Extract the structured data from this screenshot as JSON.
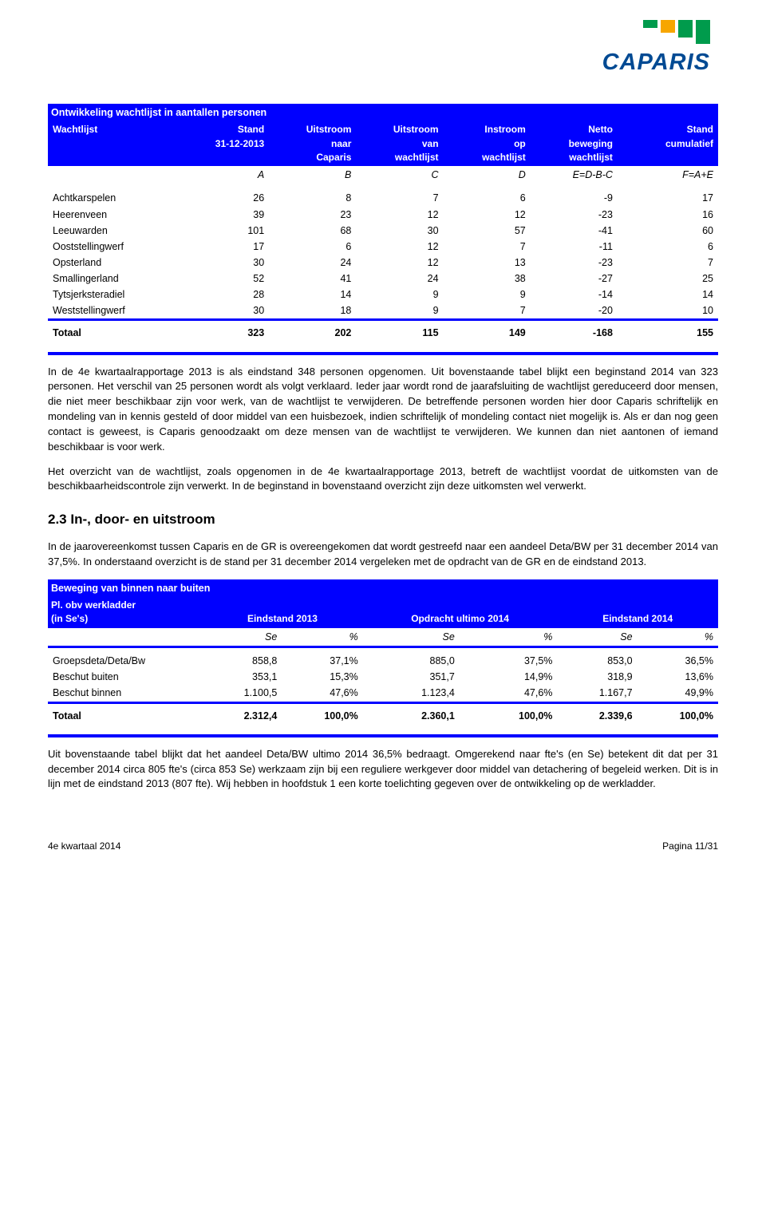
{
  "logo": {
    "text": "CAPARIS"
  },
  "table1": {
    "title": "Ontwikkeling wachtlijst in aantallen personen",
    "headers": {
      "c0_l1": "Wachtlijst",
      "c0_l2": "",
      "c0_l3": "",
      "c1_l1": "Stand",
      "c1_l2": "31-12-2013",
      "c1_l3": "",
      "c2_l1": "Uitstroom",
      "c2_l2": "naar",
      "c2_l3": "Caparis",
      "c3_l1": "Uitstroom",
      "c3_l2": "van",
      "c3_l3": "wachtlijst",
      "c4_l1": "Instroom",
      "c4_l2": "op",
      "c4_l3": "wachtlijst",
      "c5_l1": "Netto",
      "c5_l2": "beweging",
      "c5_l3": "wachtlijst",
      "c6_l1": "Stand",
      "c6_l2": "cumulatief",
      "c6_l3": ""
    },
    "letters": {
      "a": "A",
      "b": "B",
      "c": "C",
      "d": "D",
      "e": "E=D-B-C",
      "f": "F=A+E"
    },
    "rows": [
      {
        "name": "Achtkarspelen",
        "a": "26",
        "b": "8",
        "c": "7",
        "d": "6",
        "e": "-9",
        "f": "17"
      },
      {
        "name": "Heerenveen",
        "a": "39",
        "b": "23",
        "c": "12",
        "d": "12",
        "e": "-23",
        "f": "16"
      },
      {
        "name": "Leeuwarden",
        "a": "101",
        "b": "68",
        "c": "30",
        "d": "57",
        "e": "-41",
        "f": "60"
      },
      {
        "name": "Ooststellingwerf",
        "a": "17",
        "b": "6",
        "c": "12",
        "d": "7",
        "e": "-11",
        "f": "6"
      },
      {
        "name": "Opsterland",
        "a": "30",
        "b": "24",
        "c": "12",
        "d": "13",
        "e": "-23",
        "f": "7"
      },
      {
        "name": "Smallingerland",
        "a": "52",
        "b": "41",
        "c": "24",
        "d": "38",
        "e": "-27",
        "f": "25"
      },
      {
        "name": "Tytsjerksteradiel",
        "a": "28",
        "b": "14",
        "c": "9",
        "d": "9",
        "e": "-14",
        "f": "14"
      },
      {
        "name": "Weststellingwerf",
        "a": "30",
        "b": "18",
        "c": "9",
        "d": "7",
        "e": "-20",
        "f": "10"
      }
    ],
    "total": {
      "label": "Totaal",
      "a": "323",
      "b": "202",
      "c": "115",
      "d": "149",
      "e": "-168",
      "f": "155"
    }
  },
  "para1": "In de 4e kwartaalrapportage 2013 is als eindstand 348 personen opgenomen. Uit bovenstaande tabel blijkt een beginstand 2014 van 323 personen. Het verschil van 25 personen wordt als volgt verklaard. Ieder jaar wordt rond de jaarafsluiting de wachtlijst gereduceerd door mensen, die niet meer beschikbaar zijn voor werk, van de wachtlijst te verwijderen. De betreffende personen worden hier door Caparis schriftelijk en mondeling van in kennis gesteld of door middel van een huisbezoek, indien schriftelijk of mondeling contact niet mogelijk is. Als er dan nog geen contact is geweest, is Caparis genoodzaakt om deze mensen van de wachtlijst te verwijderen. We kunnen dan niet aantonen of iemand beschikbaar is voor werk.",
  "para2": "Het overzicht van de wachtlijst, zoals opgenomen in de 4e kwartaalrapportage 2013, betreft de wachtlijst voordat de uitkomsten van de beschikbaarheidscontrole zijn verwerkt. In de beginstand in bovenstaand overzicht zijn deze uitkomsten wel verwerkt.",
  "section23": "2.3 In-, door- en uitstroom",
  "para3": "In de jaarovereenkomst tussen Caparis en de GR is overeengekomen dat wordt gestreefd naar een aandeel Deta/BW per 31 december 2014 van 37,5%. In onderstaand overzicht is de stand per 31 december 2014 vergeleken met de opdracht van de GR en de eindstand 2013.",
  "table2": {
    "title": "Beweging van binnen naar buiten",
    "sub1": "Pl. obv werkladder",
    "sub2": "(in Se's)",
    "h1": "Eindstand 2013",
    "h2": "Opdracht ultimo 2014",
    "h3": "Eindstand 2014",
    "se": "Se",
    "pct": "%",
    "rows": [
      {
        "name": "Groepsdeta/Deta/Bw",
        "se1": "858,8",
        "p1": "37,1%",
        "se2": "885,0",
        "p2": "37,5%",
        "se3": "853,0",
        "p3": "36,5%"
      },
      {
        "name": "Beschut buiten",
        "se1": "353,1",
        "p1": "15,3%",
        "se2": "351,7",
        "p2": "14,9%",
        "se3": "318,9",
        "p3": "13,6%"
      },
      {
        "name": "Beschut binnen",
        "se1": "1.100,5",
        "p1": "47,6%",
        "se2": "1.123,4",
        "p2": "47,6%",
        "se3": "1.167,7",
        "p3": "49,9%"
      }
    ],
    "total": {
      "label": "Totaal",
      "se1": "2.312,4",
      "p1": "100,0%",
      "se2": "2.360,1",
      "p2": "100,0%",
      "se3": "2.339,6",
      "p3": "100,0%"
    }
  },
  "para4": "Uit bovenstaande tabel blijkt dat het aandeel Deta/BW ultimo 2014 36,5% bedraagt. Omgerekend naar fte's (en Se) betekent dit dat per 31 december 2014 circa 805 fte's (circa 853 Se) werkzaam zijn bij een reguliere werkgever door middel van detachering of begeleid werken. Dit is in lijn met de eindstand 2013 (807 fte). Wij hebben in hoofdstuk 1 een korte toelichting gegeven over de ontwikkeling op de werkladder.",
  "footer": {
    "left": "4e kwartaal 2014",
    "right": "Pagina 11/31"
  }
}
